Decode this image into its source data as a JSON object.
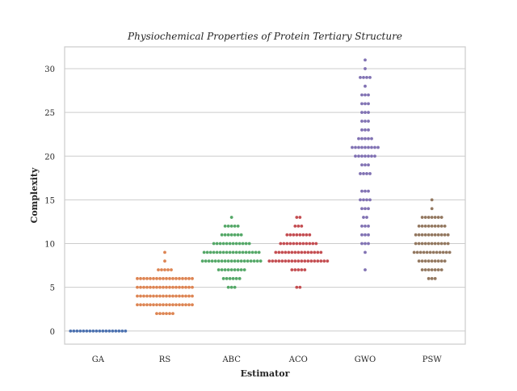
{
  "chart_data": {
    "type": "scatter",
    "subtype": "swarm",
    "title": "Physiochemical Properties of Protein Tertiary Structure",
    "xlabel": "Estimator",
    "ylabel": "Complexity",
    "categories": [
      "GA",
      "RS",
      "ABC",
      "ACO",
      "GWO",
      "PSW"
    ],
    "ylim": [
      -1.5,
      32.5
    ],
    "yticks": [
      0,
      5,
      10,
      15,
      20,
      25,
      30
    ],
    "grid": "horizontal",
    "legend": "none",
    "colors": [
      "#4c72b0",
      "#dd8452",
      "#55a868",
      "#c44e52",
      "#8172b3",
      "#937860"
    ],
    "frame_color": "#cccccc",
    "grid_color": "#cccccc",
    "series": [
      {
        "category": "GA",
        "counts": {
          "0": 18
        }
      },
      {
        "category": "RS",
        "counts": {
          "2": 6,
          "3": 18,
          "4": 18,
          "5": 18,
          "6": 18,
          "7": 5,
          "8": 1,
          "9": 1
        }
      },
      {
        "category": "ABC",
        "counts": {
          "5": 3,
          "6": 6,
          "7": 9,
          "8": 19,
          "9": 18,
          "10": 12,
          "11": 7,
          "12": 5,
          "13": 1
        }
      },
      {
        "category": "ACO",
        "counts": {
          "5": 2,
          "7": 5,
          "8": 19,
          "9": 15,
          "10": 12,
          "11": 8,
          "12": 3,
          "13": 2
        }
      },
      {
        "category": "GWO",
        "counts": {
          "7": 1,
          "9": 1,
          "10": 3,
          "11": 3,
          "12": 3,
          "13": 2,
          "14": 3,
          "15": 4,
          "16": 3,
          "18": 4,
          "19": 3,
          "20": 7,
          "21": 9,
          "22": 5,
          "23": 3,
          "24": 3,
          "25": 3,
          "26": 3,
          "27": 3,
          "28": 1,
          "29": 4,
          "30": 1,
          "31": 1
        }
      },
      {
        "category": "PSW",
        "counts": {
          "6": 3,
          "7": 7,
          "8": 9,
          "9": 12,
          "10": 11,
          "11": 11,
          "12": 9,
          "13": 7,
          "14": 1,
          "15": 1
        }
      }
    ]
  }
}
